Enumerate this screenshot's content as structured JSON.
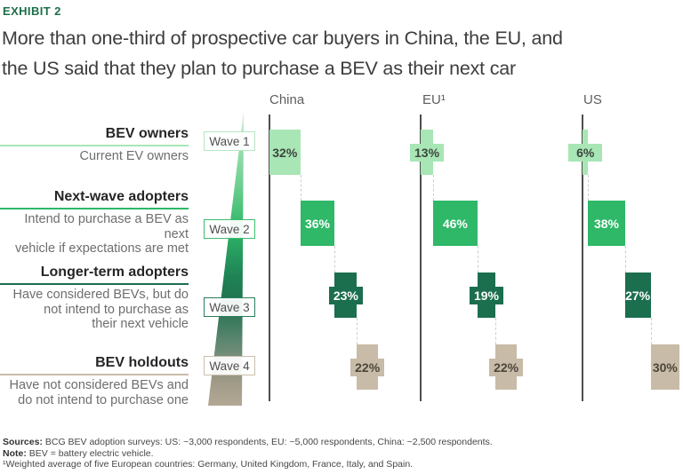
{
  "exhibit_label": "EXHIBIT 2",
  "title": "More than one-third of prospective car buyers in China, the EU, and\nthe US said that they plan to purchase a BEV as their next car",
  "legend_rows": [
    {
      "heading": "BEV owners",
      "desc": "Current EV owners"
    },
    {
      "heading": "Next-wave adopters",
      "desc": "Intend to purchase a BEV as next\nvehicle if expectations are met"
    },
    {
      "heading": "Longer-term adopters",
      "desc": "Have considered BEVs, but do\nnot intend to purchase as\ntheir next vehicle"
    },
    {
      "heading": "BEV holdouts",
      "desc": "Have not considered BEVs and\ndo not intend to purchase one"
    }
  ],
  "chart_data": {
    "type": "bar",
    "subtype": "waterfall-columns",
    "title": "Share of respondents by BEV adoption wave",
    "unit": "%",
    "categories": [
      "Wave 1",
      "Wave 2",
      "Wave 3",
      "Wave 4"
    ],
    "series": [
      {
        "name": "China",
        "values": [
          32,
          36,
          23,
          22
        ],
        "labels": [
          "32%",
          "36%",
          "23%",
          "22%"
        ]
      },
      {
        "name": "EU¹",
        "values": [
          13,
          46,
          19,
          22
        ],
        "labels": [
          "13%",
          "46%",
          "19%",
          "22%"
        ]
      },
      {
        "name": "US",
        "values": [
          6,
          38,
          27,
          30
        ],
        "labels": [
          "6%",
          "38%",
          "27%",
          "30%"
        ]
      }
    ],
    "wave_colors": [
      "#a8e6b5",
      "#2eb868",
      "#1b6e4e",
      "#c8bba7"
    ],
    "wave_label_text_colors": [
      "#3c463f",
      "#ffffff",
      "#ffffff",
      "#4c463c"
    ],
    "wave_box_border_colors": [
      "#b5e7c1",
      "#3cbd6e",
      "#2a7d5b",
      "#cabfab"
    ],
    "funnel_gradient": [
      "#d8f3dc",
      "#a8e4b6",
      "#6fcf92",
      "#2eb868",
      "#1f8355",
      "#20714e",
      "#5c8671",
      "#a09a87",
      "#b3a894"
    ],
    "accent_color": "#1d6f49",
    "legend_position": "left",
    "grid": false
  },
  "footer": {
    "sources_label": "Sources:",
    "sources_text": " BCG BEV adoption surveys: US: ~3,000 respondents, EU: ~5,000 respondents, China: ~2,500 respondents.",
    "note_label": "Note:",
    "note_text": " BEV = battery electric vehicle.",
    "footnote": "¹Weighted average of five European countries: Germany, United Kingdom, France, Italy, and Spain."
  }
}
